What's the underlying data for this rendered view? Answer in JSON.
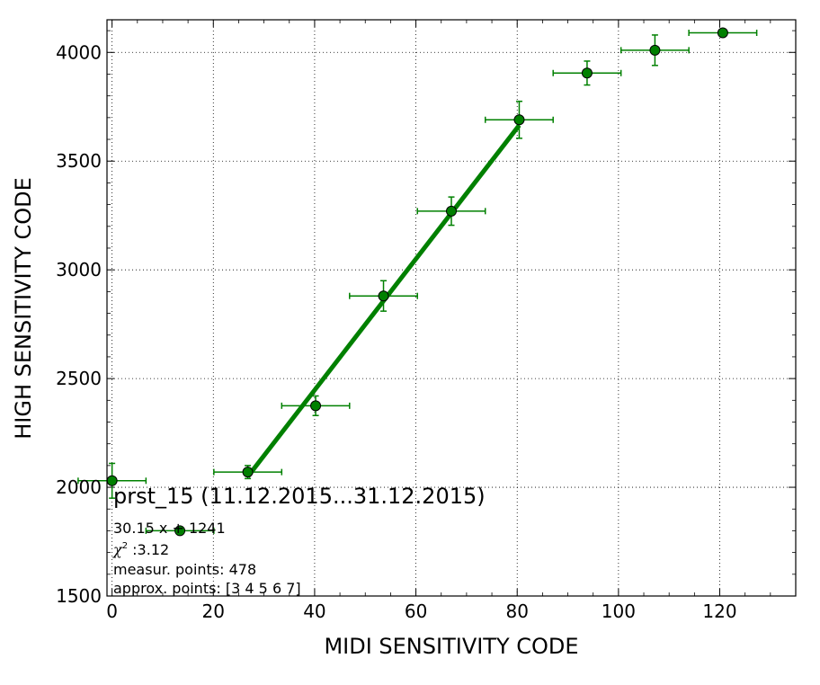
{
  "chart_data": {
    "type": "scatter",
    "xlabel": "MIDI SENSITIVITY CODE",
    "ylabel": "HIGH SENSITIVITY CODE",
    "xlim": [
      -1,
      135
    ],
    "ylim": [
      1500,
      4150
    ],
    "x_ticks": [
      0,
      20,
      40,
      60,
      80,
      100,
      120
    ],
    "y_ticks": [
      1500,
      2000,
      2500,
      3000,
      3500,
      4000
    ],
    "x_tick_labels": [
      "0",
      "20",
      "40",
      "60",
      "80",
      "100",
      "120"
    ],
    "y_tick_labels": [
      "1500",
      "2000",
      "2500",
      "3000",
      "3500",
      "4000"
    ],
    "grid": true,
    "color": "#008000",
    "marker_color": "#008000",
    "series": [
      {
        "points": [
          {
            "x": 0,
            "y": 2030,
            "xerr": 6.7,
            "yerr": 80
          },
          {
            "x": 13.4,
            "y": 1800,
            "xerr": 6.7,
            "yerr": 0
          },
          {
            "x": 26.8,
            "y": 2070,
            "xerr": 6.7,
            "yerr": 30
          },
          {
            "x": 40.2,
            "y": 2375,
            "xerr": 6.7,
            "yerr": 45
          },
          {
            "x": 53.6,
            "y": 2880,
            "xerr": 6.7,
            "yerr": 70
          },
          {
            "x": 67.0,
            "y": 3270,
            "xerr": 6.7,
            "yerr": 65
          },
          {
            "x": 80.4,
            "y": 3690,
            "xerr": 6.7,
            "yerr": 85
          },
          {
            "x": 93.8,
            "y": 3905,
            "xerr": 6.7,
            "yerr": 55
          },
          {
            "x": 107.2,
            "y": 4010,
            "xerr": 6.7,
            "yerr": 70
          },
          {
            "x": 120.6,
            "y": 4090,
            "xerr": 6.7,
            "yerr": 0
          }
        ]
      }
    ],
    "fit": {
      "slope": 30.15,
      "intercept": 1241,
      "x_range": [
        26.8,
        80.4
      ]
    },
    "annotations": {
      "title": "prst_15 (11.12.2015...31.12.2015)",
      "fit_text": "30.15 x + 1241",
      "chi_symbol": "χ",
      "chi_exp": "2",
      "chi_value": " :3.12",
      "measur_points": "measur. points: 478",
      "approx_points": "approx. points: [3 4 5 6 7]"
    }
  }
}
